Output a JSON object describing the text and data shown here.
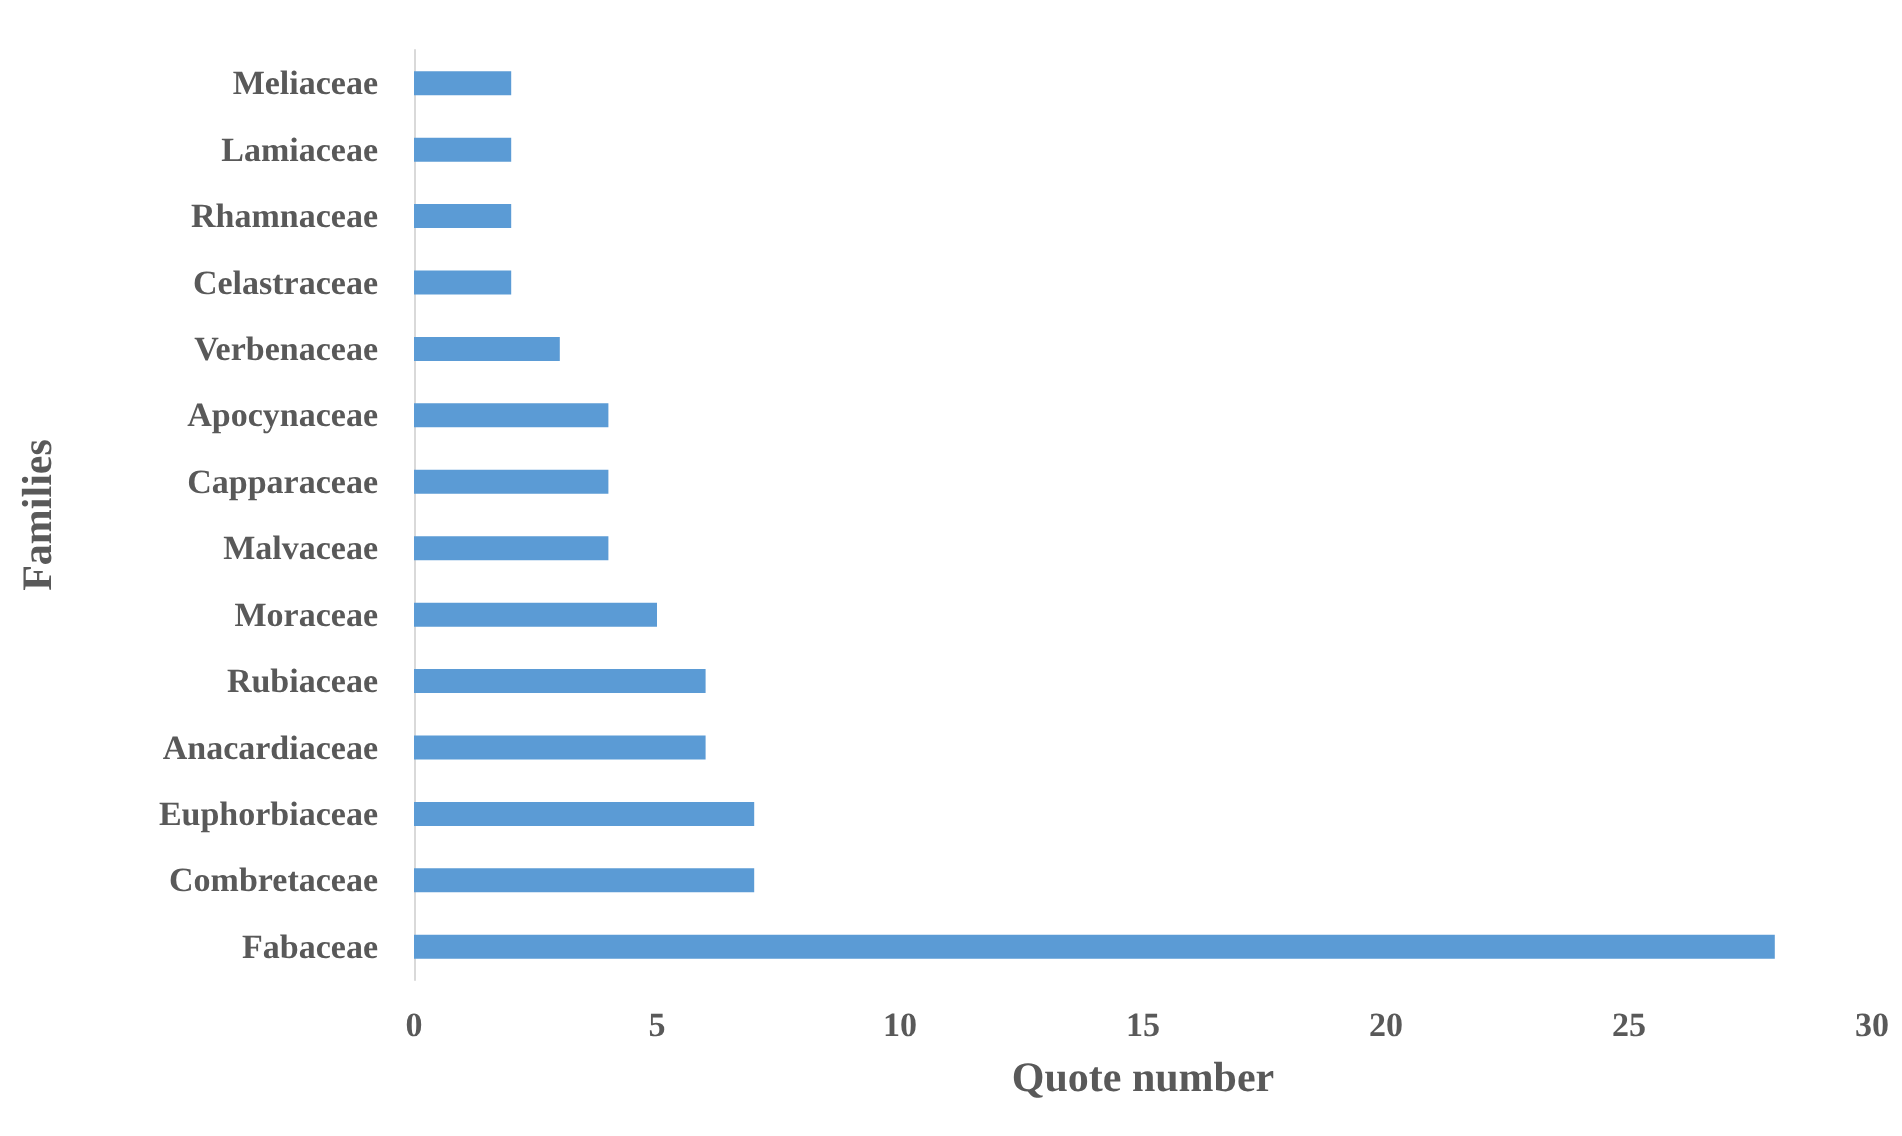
{
  "chart_data": {
    "type": "bar",
    "orientation": "horizontal",
    "xlabel": "Quote number",
    "ylabel": "Families",
    "categories": [
      "Meliaceae",
      "Lamiaceae",
      "Rhamnaceae",
      "Celastraceae",
      "Verbenaceae",
      "Apocynaceae",
      "Capparaceae",
      "Malvaceae",
      "Moraceae",
      "Rubiaceae",
      "Anacardiaceae",
      "Euphorbiaceae",
      "Combretaceae",
      "Fabaceae"
    ],
    "values": [
      2,
      2,
      2,
      2,
      3,
      4,
      4,
      4,
      5,
      6,
      6,
      7,
      7,
      28
    ],
    "color": "#5b9bd5",
    "xlim": [
      0,
      30
    ],
    "xticks": [
      0,
      5,
      10,
      15,
      20,
      25,
      30
    ],
    "grid": false
  }
}
